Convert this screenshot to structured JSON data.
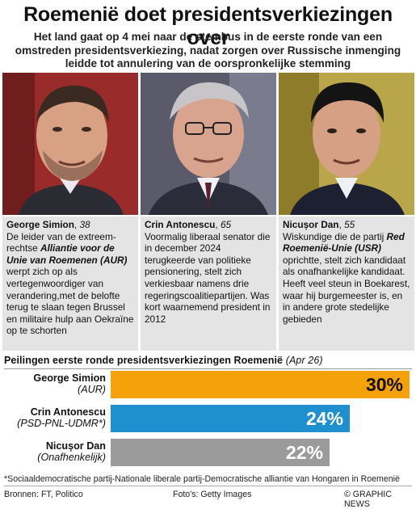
{
  "header": {
    "title": "Roemenië doet presidentsverkiezingen over",
    "subtitle": "Het land gaat op 4 mei naar de stembus in de eerste ronde van een omstreden presidentsverkiezing, nadat zorgen over Russische inmenging leidde tot annulering van de oorspronkelijke stemming"
  },
  "candidates": [
    {
      "name": "George Simion",
      "age": "38",
      "desc_a": "De leider van de extreem-rechtse ",
      "desc_b": "Alliantie voor de Unie van Roemenen (AUR)",
      "desc_c": " werpt zich op als vertegenwoordiger van verandering,met de belofte terug te slaan tegen Brussel en militaire hulp aan Oekraïne op te schorten",
      "photo_bg": "#9a2b2b"
    },
    {
      "name": "Crin Antonescu",
      "age": "65",
      "desc_a": "Voormalig liberaal senator die in december 2024 terugkeerde van politieke pensionering, stelt zich verkiesbaar namens drie regeringscoalitiepartijen. Was kort waarnemend president in 2012",
      "photo_bg": "#5b5a6a"
    },
    {
      "name": "Nicușor Dan",
      "age": "55",
      "desc_a": "Wiskundige die de partij ",
      "desc_b": "Red Roemenië-Unie (USR)",
      "desc_c": " oprichtte, stelt zich kandidaat als onafhankelijke kandidaat. Heeft veel steun in Boekarest, waar hij burgemeester is, en in andere grote stedelijke gebieden",
      "photo_bg": "#b9a64a"
    }
  ],
  "poll": {
    "title": "Peilingen eerste ronde presidentsverkiezingen Roemenië",
    "date": "(Apr 26)"
  },
  "chart_data": {
    "type": "bar",
    "categories": [
      "George Simion (AUR)",
      "Crin Antonescu (PSD-PNL-UDMR*)",
      "Nicușor Dan (Onafhenkelijk)"
    ],
    "values": [
      30,
      24,
      22
    ],
    "value_labels": [
      "30%",
      "24%",
      "22%"
    ],
    "names": [
      "George Simion",
      "Crin Antonescu",
      "Nicușor Dan"
    ],
    "parties": [
      "(AUR)",
      "(PSD-PNL-UDMR*)",
      "(Onafhenkelijk)"
    ],
    "colors": [
      "#f5a20a",
      "#1f8fd0",
      "#9b9b9b"
    ],
    "xlim": [
      0,
      30
    ]
  },
  "footnote": "*Sociaaldemocratische partij-Nationale liberale partij-Democratische alliantie van Hongaren in Roemenië",
  "footer": {
    "sources": "Bronnen: FT, Politico",
    "photos": "Foto's: Getty Images",
    "copyright": "© GRAPHIC NEWS"
  }
}
